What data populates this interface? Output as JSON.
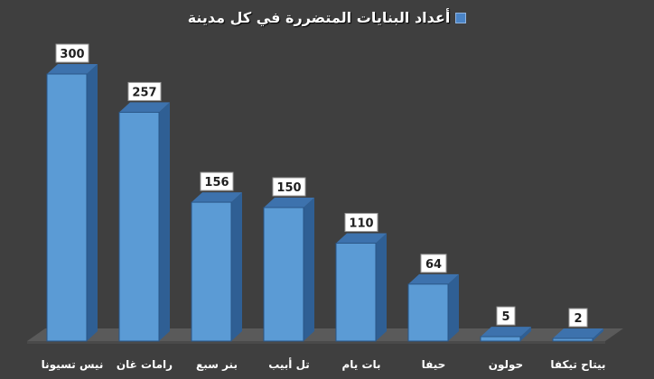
{
  "chart_data": {
    "type": "bar",
    "title": "أعداد البنايات المتضررة في كل مدينة",
    "categories": [
      "نيس تسيونا",
      "رامات غان",
      "بنر سبع",
      "تل أبيب",
      "بات يام",
      "حيفا",
      "حولون",
      "بيتاح تيكفا"
    ],
    "series": [
      {
        "values": [
          300,
          257,
          156,
          150,
          110,
          64,
          5,
          2
        ]
      }
    ],
    "ylim": [
      0,
      300
    ],
    "grid": false,
    "legend": "top-center",
    "data_labels": true,
    "colors": {
      "background": "#3f3f3f",
      "bar_front": "#5b9bd5",
      "bar_side": "#2f5f94",
      "bar_top": "#3d72ad",
      "floor": "#5a5a5a",
      "label_box": "#ffffff",
      "label_text": "#1f1f1f",
      "category_text": "#ffffff"
    }
  }
}
